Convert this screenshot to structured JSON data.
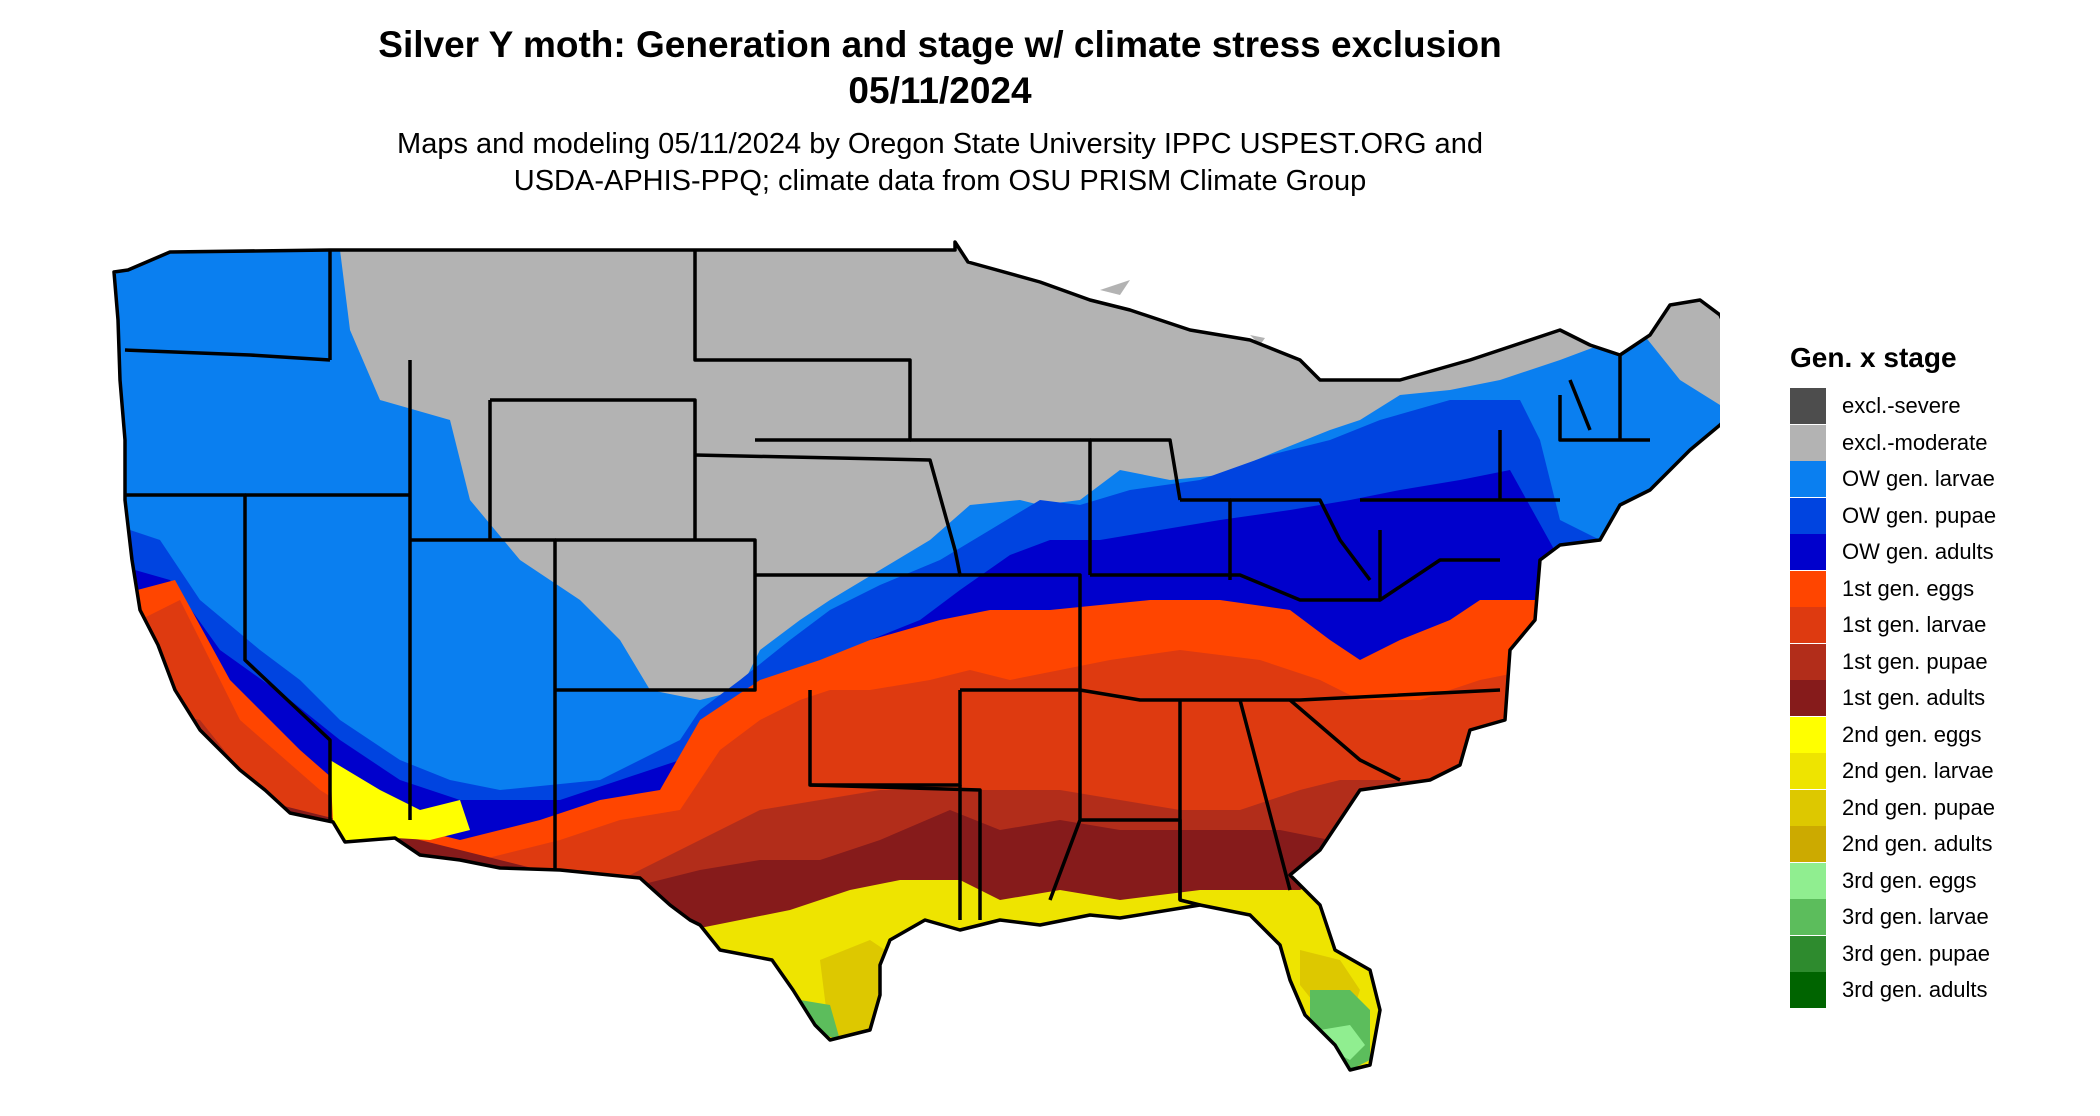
{
  "title_line1": "Silver Y moth: Generation and stage w/ climate stress exclusion",
  "title_line2": "05/11/2024",
  "subtitle_line1": "Maps and modeling 05/11/2024 by Oregon State University IPPC USPEST.ORG and",
  "subtitle_line2": "USDA-APHIS-PPQ; climate data from OSU PRISM Climate Group",
  "legend": {
    "title": "Gen. x stage",
    "items": [
      {
        "label": "excl.-severe",
        "color": "#4d4d4d"
      },
      {
        "label": "excl.-moderate",
        "color": "#b3b3b3"
      },
      {
        "label": "OW gen. larvae",
        "color": "#0a7ff0"
      },
      {
        "label": "OW gen. pupae",
        "color": "#0044e0"
      },
      {
        "label": "OW gen. adults",
        "color": "#0000cc"
      },
      {
        "label": "1st gen. eggs",
        "color": "#ff4500"
      },
      {
        "label": "1st gen. larvae",
        "color": "#de3a10"
      },
      {
        "label": "1st gen. pupae",
        "color": "#b22d1a"
      },
      {
        "label": "1st gen. adults",
        "color": "#861b1b"
      },
      {
        "label": "2nd gen. eggs",
        "color": "#ffff00"
      },
      {
        "label": "2nd gen. larvae",
        "color": "#eee400"
      },
      {
        "label": "2nd gen. pupae",
        "color": "#ddc800"
      },
      {
        "label": "2nd gen. adults",
        "color": "#ccaa00"
      },
      {
        "label": "3rd gen. eggs",
        "color": "#90ee90"
      },
      {
        "label": "3rd gen. larvae",
        "color": "#5cbd5c"
      },
      {
        "label": "3rd gen. pupae",
        "color": "#2e8b2e"
      },
      {
        "label": "3rd gen. adults",
        "color": "#006400"
      }
    ]
  }
}
